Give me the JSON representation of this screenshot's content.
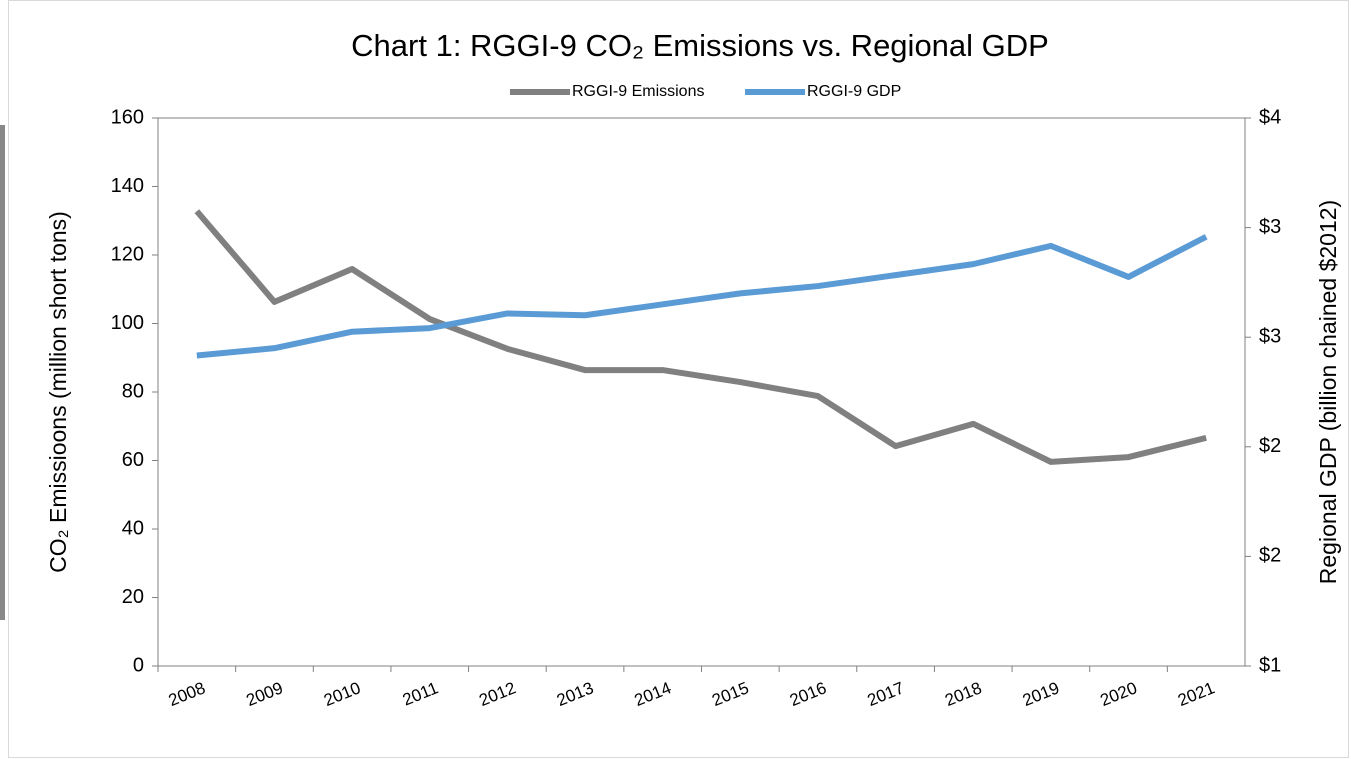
{
  "chart_data": {
    "type": "line",
    "title": "Chart 1: RGGI-9 CO₂ Emissions vs. Regional GDP",
    "y_label": "CO₂ Emissioons  (million short tons)",
    "y2_label": "Regional GDP (billion chained $2012)",
    "categories": [
      "2008",
      "2009",
      "2010",
      "2011",
      "2012",
      "2013",
      "2014",
      "2015",
      "2016",
      "2017",
      "2018",
      "2019",
      "2020",
      "2021"
    ],
    "series": [
      {
        "name": "RGGI-9 Emissions",
        "color": "#808080",
        "values": [
          132.8,
          106.3,
          115.9,
          101.3,
          92.6,
          86.4,
          86.4,
          82.9,
          78.8,
          64.2,
          70.7,
          59.6,
          61.0,
          66.6
        ]
      },
      {
        "name": "RGGI-9 GDP",
        "color": "#5b9bd5",
        "axis": "y2",
        "values": [
          2.7,
          2.74,
          2.83,
          2.85,
          2.93,
          2.92,
          2.98,
          3.04,
          3.08,
          3.14,
          3.2,
          3.3,
          3.13,
          3.35
        ]
      }
    ],
    "ylim": [
      0,
      160
    ],
    "yticks": [
      0,
      20,
      40,
      60,
      80,
      100,
      120,
      140,
      160
    ],
    "y2lim": [
      1,
      4
    ],
    "y2ticks": [
      {
        "value": 1,
        "label": "$1"
      },
      {
        "value": 1.6,
        "label": "$2"
      },
      {
        "value": 2.2,
        "label": "$2"
      },
      {
        "value": 2.8,
        "label": "$3"
      },
      {
        "value": 3.4,
        "label": "$3"
      },
      {
        "value": 4,
        "label": "$4"
      }
    ],
    "legend": "top"
  }
}
